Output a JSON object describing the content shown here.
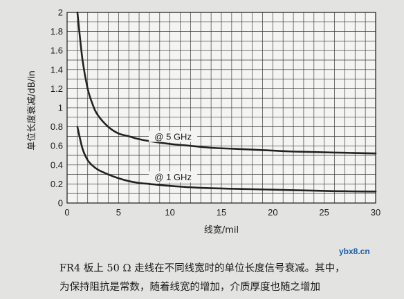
{
  "chart_data": {
    "type": "line",
    "ylabel": "单位长度衰减/dB/in",
    "xlabel": "线宽/mil",
    "xlim": [
      0,
      30
    ],
    "ylim": [
      0,
      2
    ],
    "x_ticks": [
      0,
      5,
      10,
      15,
      20,
      25,
      30
    ],
    "y_ticks": [
      0,
      0.2,
      0.4,
      0.6,
      0.8,
      1,
      1.2,
      1.4,
      1.6,
      1.8,
      2
    ],
    "grid": true,
    "series": [
      {
        "name": "@ 5 GHz",
        "x": [
          1,
          1.5,
          2,
          2.5,
          3,
          4,
          5,
          6,
          7,
          8,
          10,
          12,
          14,
          16,
          18,
          20,
          22,
          24,
          26,
          28,
          30
        ],
        "values": [
          2.0,
          1.5,
          1.2,
          1.03,
          0.92,
          0.8,
          0.73,
          0.7,
          0.67,
          0.65,
          0.62,
          0.6,
          0.58,
          0.57,
          0.56,
          0.55,
          0.54,
          0.535,
          0.53,
          0.525,
          0.52
        ]
      },
      {
        "name": "@ 1 GHz",
        "x": [
          1,
          1.5,
          2,
          2.5,
          3,
          4,
          5,
          6,
          7,
          8,
          10,
          12,
          14,
          16,
          18,
          20,
          22,
          24,
          26,
          28,
          30
        ],
        "values": [
          0.8,
          0.57,
          0.45,
          0.39,
          0.35,
          0.3,
          0.26,
          0.23,
          0.21,
          0.2,
          0.18,
          0.165,
          0.155,
          0.15,
          0.145,
          0.14,
          0.135,
          0.13,
          0.125,
          0.122,
          0.12
        ]
      }
    ]
  },
  "caption": {
    "line1": "FR4 板上 50 Ω 走线在不同线宽时的单位长度信号衰减。其中，",
    "line2": "为保持阻抗是常数，随着线宽的增加，介质厚度也随之增加"
  },
  "watermark": "ybx8.cn"
}
